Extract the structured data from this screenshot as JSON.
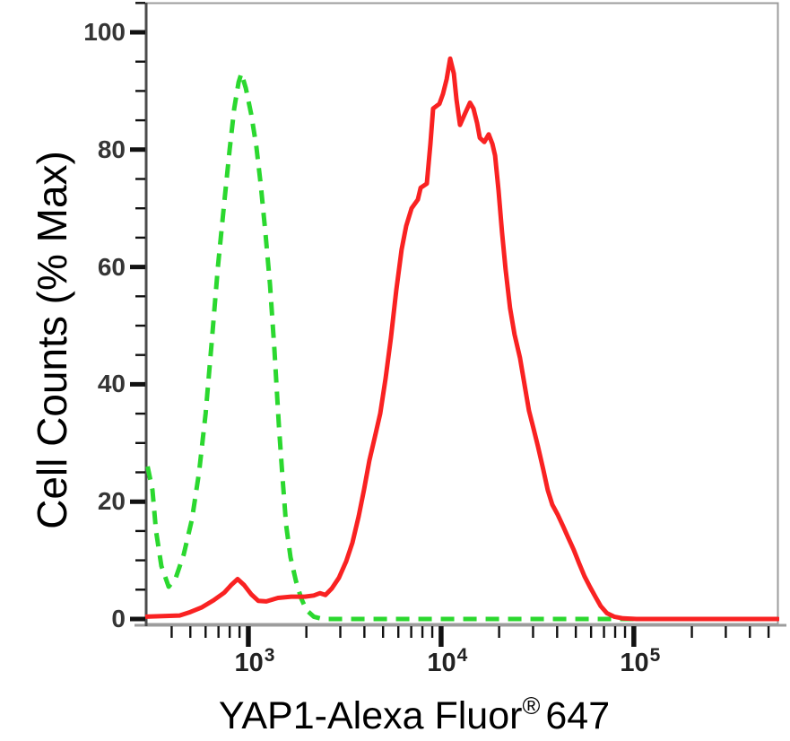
{
  "figure": {
    "y_axis_title": "Cell Counts (% Max)",
    "x_axis_title_main": "YAP1-Alexa Fluor",
    "x_axis_title_sup": "®",
    "x_axis_title_suffix": "647"
  },
  "chart_data": {
    "type": "line",
    "subtype": "flow-cytometry-histogram-overlay",
    "title": "",
    "xlabel": "YAP1-Alexa Fluor® 647",
    "ylabel": "Cell Counts (% Max)",
    "x_scale": "log10",
    "xlim": [
      295,
      562000
    ],
    "ylim": [
      0,
      100
    ],
    "grid": false,
    "legend_position": "none",
    "colors": {
      "frame": "#9C9C9C",
      "left_axis": "#4B4B4B",
      "bottom_axis": "#9C9C9C",
      "tick": "#111111",
      "y_label_color": "#353535",
      "x_label_color": "#222222",
      "green_series": "#2BD82F",
      "red_series": "#F92222"
    },
    "y_major_ticks": [
      {
        "value": 0,
        "label": "0"
      },
      {
        "value": 20,
        "label": "20"
      },
      {
        "value": 40,
        "label": "40"
      },
      {
        "value": 60,
        "label": "60"
      },
      {
        "value": 80,
        "label": "80"
      },
      {
        "value": 100,
        "label": "100"
      }
    ],
    "y_minor_ticks": [
      5,
      10,
      15,
      25,
      30,
      35,
      45,
      50,
      55,
      65,
      70,
      75,
      85,
      90,
      95,
      105
    ],
    "x_major_ticks": [
      {
        "value": 1000,
        "label_base": "10",
        "label_exp": "3"
      },
      {
        "value": 10000,
        "label_base": "10",
        "label_exp": "4"
      },
      {
        "value": 100000,
        "label_base": "10",
        "label_exp": "5"
      }
    ],
    "x_minor_ticks": [
      400,
      500,
      600,
      700,
      800,
      900,
      2000,
      3000,
      4000,
      5000,
      6000,
      7000,
      8000,
      9000,
      20000,
      30000,
      40000,
      50000,
      60000,
      70000,
      80000,
      90000,
      200000,
      300000,
      400000,
      500000
    ],
    "series": [
      {
        "name": "green-dashed-control",
        "style": "dashed",
        "color": "#2BD82F",
        "peak": {
          "x": 920,
          "y": 93
        },
        "points": [
          [
            300,
            26
          ],
          [
            318,
            22
          ],
          [
            332,
            15
          ],
          [
            354,
            9
          ],
          [
            386,
            5.5
          ],
          [
            420,
            7
          ],
          [
            462,
            11
          ],
          [
            510,
            17
          ],
          [
            555,
            25
          ],
          [
            600,
            35
          ],
          [
            645,
            47
          ],
          [
            695,
            60
          ],
          [
            750,
            71
          ],
          [
            800,
            80
          ],
          [
            845,
            87
          ],
          [
            890,
            91.5
          ],
          [
            920,
            93
          ],
          [
            970,
            90.5
          ],
          [
            1035,
            86
          ],
          [
            1100,
            80.5
          ],
          [
            1160,
            74
          ],
          [
            1225,
            66
          ],
          [
            1295,
            57
          ],
          [
            1365,
            46
          ],
          [
            1440,
            33
          ],
          [
            1505,
            24
          ],
          [
            1570,
            16
          ],
          [
            1655,
            10.5
          ],
          [
            1765,
            6.5
          ],
          [
            1880,
            3.5
          ],
          [
            2005,
            1.5
          ],
          [
            2185,
            0.4
          ],
          [
            2430,
            0
          ],
          [
            4000,
            0
          ],
          [
            10000,
            0
          ],
          [
            50000,
            0
          ],
          [
            200000,
            0
          ],
          [
            560000,
            0
          ]
        ]
      },
      {
        "name": "red-solid-stained",
        "style": "solid",
        "color": "#F92222",
        "peak": {
          "x": 11140,
          "y": 95.5
        },
        "points": [
          [
            295,
            0.4
          ],
          [
            440,
            0.6
          ],
          [
            500,
            1.2
          ],
          [
            575,
            2
          ],
          [
            660,
            3.2
          ],
          [
            750,
            4.5
          ],
          [
            815,
            5.8
          ],
          [
            880,
            6.8
          ],
          [
            950,
            5.8
          ],
          [
            1035,
            4.2
          ],
          [
            1125,
            3.1
          ],
          [
            1240,
            3
          ],
          [
            1425,
            3.6
          ],
          [
            1670,
            3.8
          ],
          [
            1965,
            3.8
          ],
          [
            2185,
            4
          ],
          [
            2355,
            4.4
          ],
          [
            2510,
            4.1
          ],
          [
            2710,
            5.2
          ],
          [
            2950,
            7
          ],
          [
            3215,
            9.8
          ],
          [
            3465,
            13
          ],
          [
            3735,
            17.5
          ],
          [
            3980,
            22
          ],
          [
            4245,
            27
          ],
          [
            4530,
            31
          ],
          [
            4830,
            35
          ],
          [
            5150,
            41
          ],
          [
            5495,
            48
          ],
          [
            5850,
            56
          ],
          [
            6240,
            63
          ],
          [
            6590,
            67
          ],
          [
            7030,
            70
          ],
          [
            7580,
            71.5
          ],
          [
            7830,
            73.5
          ],
          [
            8430,
            74.2
          ],
          [
            8800,
            81
          ],
          [
            9090,
            87
          ],
          [
            9800,
            87.8
          ],
          [
            10230,
            89.5
          ],
          [
            10690,
            92
          ],
          [
            11140,
            95.5
          ],
          [
            11640,
            93
          ],
          [
            12020,
            88.5
          ],
          [
            12540,
            84.2
          ],
          [
            13240,
            86
          ],
          [
            14120,
            88
          ],
          [
            14720,
            87
          ],
          [
            15380,
            84.5
          ],
          [
            15890,
            82
          ],
          [
            16750,
            81.3
          ],
          [
            17660,
            82.6
          ],
          [
            18450,
            81
          ],
          [
            19050,
            79
          ],
          [
            19880,
            73
          ],
          [
            20700,
            66
          ],
          [
            21630,
            59.5
          ],
          [
            22800,
            53
          ],
          [
            24040,
            48.5
          ],
          [
            25660,
            44.5
          ],
          [
            27090,
            40
          ],
          [
            28580,
            35.5
          ],
          [
            30130,
            32.5
          ],
          [
            31770,
            29.5
          ],
          [
            33880,
            25.5
          ],
          [
            35730,
            22
          ],
          [
            37760,
            19.5
          ],
          [
            40270,
            17.8
          ],
          [
            42950,
            15.8
          ],
          [
            45710,
            13.8
          ],
          [
            48750,
            11.8
          ],
          [
            52000,
            9.5
          ],
          [
            55460,
            7.3
          ],
          [
            59160,
            5.5
          ],
          [
            63100,
            3.8
          ],
          [
            67300,
            2.2
          ],
          [
            72440,
            1
          ],
          [
            79070,
            0.4
          ],
          [
            87900,
            0.1
          ],
          [
            103300,
            0
          ],
          [
            560000,
            0
          ]
        ]
      }
    ]
  }
}
